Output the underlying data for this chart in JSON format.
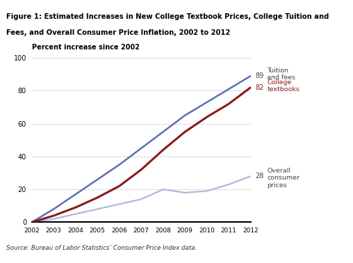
{
  "title_line1": "Figure 1: Estimated Increases in New College Textbook Prices, College Tuition and",
  "title_line2": "Fees, and Overall Consumer Price Inflation, 2002 to 2012",
  "ylabel": "Percent increase since 2002",
  "source": "Source: Bureau of Labor Statistics’ Consumer Price Index data.",
  "years": [
    2002,
    2003,
    2004,
    2005,
    2006,
    2007,
    2008,
    2009,
    2010,
    2011,
    2012
  ],
  "tuition_fees": [
    0,
    8,
    17,
    26,
    35,
    45,
    55,
    65,
    73,
    81,
    89
  ],
  "college_textbooks": [
    0,
    4,
    9,
    15,
    22,
    32,
    44,
    55,
    64,
    72,
    82
  ],
  "overall_cpi": [
    0,
    2,
    5,
    8,
    11,
    14,
    20,
    18,
    19,
    23,
    28
  ],
  "tuition_color": "#5b6eb5",
  "textbooks_color": "#8b1a1a",
  "cpi_color": "#b0b8d8",
  "header_bar_color": "#1a1a1a",
  "bg_color": "#ffffff",
  "label_tuition_color": "#444444",
  "label_textbooks_color": "#8b1a1a",
  "label_cpi_color": "#444444"
}
